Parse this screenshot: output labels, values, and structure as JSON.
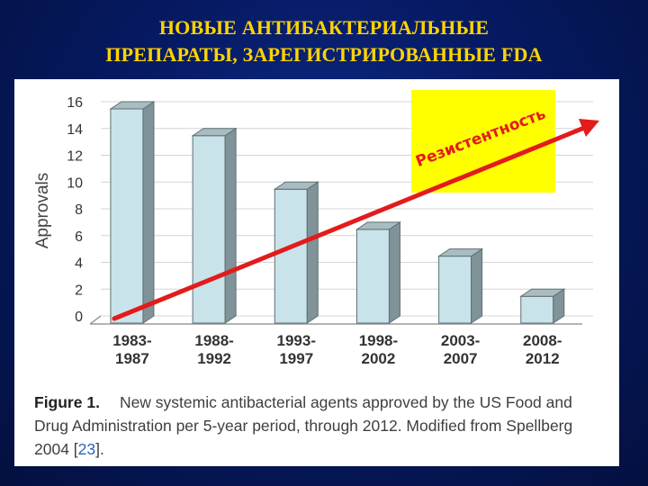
{
  "title_line1": "НОВЫЕ АНТИБАКТЕРИАЛЬНЫЕ",
  "title_line2": "ПРЕПАРАТЫ, ЗАРЕГИСТРИРОВАННЫЕ FDA",
  "colors": {
    "bar_front": "#c9e3ea",
    "bar_side": "#7f9398",
    "bar_top": "#a9bcc1",
    "arrow": "#e31b1b",
    "callout_bg": "#ffff00",
    "callout_text": "#e31b1b",
    "title": "#ffd400"
  },
  "callout": {
    "text": "Резистентность"
  },
  "caption": {
    "figure_label": "Figure 1.",
    "text": "New systemic antibacterial agents approved by the US Food and Drug Administration per 5-year period, through 2012. Modified from Spellberg 2004 [",
    "ref": "23",
    "end": "]."
  },
  "chart_data": {
    "type": "bar",
    "ylabel": "Approvals",
    "xlabel": "",
    "ylim": [
      0,
      16
    ],
    "yticks": [
      0,
      2,
      4,
      6,
      8,
      10,
      12,
      14,
      16
    ],
    "grid": true,
    "categories": [
      [
        "1983-",
        "1987"
      ],
      [
        "1988-",
        "1992"
      ],
      [
        "1993-",
        "1997"
      ],
      [
        "1998-",
        "2002"
      ],
      [
        "2003-",
        "2007"
      ],
      [
        "2008-",
        "2012"
      ]
    ],
    "values": [
      16,
      14,
      10,
      7,
      5,
      2
    ],
    "annotations": [
      {
        "type": "arrow",
        "label": "Резистентность",
        "direction": "rising",
        "from": "bottom-left",
        "to": "top-right"
      }
    ]
  }
}
